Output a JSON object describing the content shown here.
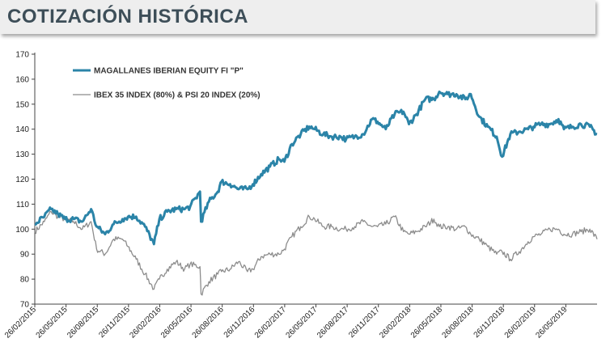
{
  "header": {
    "title": "COTIZACIÓN HISTÓRICA"
  },
  "chart_data": {
    "type": "line",
    "title": "COTIZACIÓN HISTÓRICA",
    "ylim": [
      70,
      170
    ],
    "yticks": [
      70,
      80,
      90,
      100,
      110,
      120,
      130,
      140,
      150,
      160,
      170
    ],
    "x_tick_labels": [
      "26/02/2015",
      "26/05/2015",
      "26/08/2015",
      "26/11/2015",
      "26/02/2016",
      "26/05/2016",
      "26/08/2016",
      "26/11/2016",
      "26/02/2017",
      "26/05/2017",
      "26/08/2017",
      "26/11/2017",
      "26/02/2018",
      "26/05/2018",
      "26/08/2018",
      "26/11/2018",
      "26/02/2019",
      "26/05/2019"
    ],
    "grid": false,
    "legend_position": "top-left",
    "colors": {
      "magallanes": "#2b84a8",
      "index": "#8c8c8c"
    },
    "series": [
      {
        "name": "MAGALLANES IBERIAN EQUITY FI \"P\"",
        "x": [
          "2015-02-26",
          "2015-03-26",
          "2015-04-15",
          "2015-05-05",
          "2015-05-26",
          "2015-06-20",
          "2015-07-15",
          "2015-08-10",
          "2015-08-26",
          "2015-09-20",
          "2015-10-15",
          "2015-11-10",
          "2015-11-26",
          "2015-12-20",
          "2016-01-15",
          "2016-02-10",
          "2016-02-26",
          "2016-03-20",
          "2016-04-15",
          "2016-05-10",
          "2016-05-26",
          "2016-06-24",
          "2016-06-27",
          "2016-07-20",
          "2016-08-15",
          "2016-08-26",
          "2016-09-20",
          "2016-10-15",
          "2016-11-10",
          "2016-11-26",
          "2016-12-20",
          "2017-01-15",
          "2017-02-10",
          "2017-02-26",
          "2017-03-20",
          "2017-04-15",
          "2017-05-10",
          "2017-05-26",
          "2017-06-20",
          "2017-07-15",
          "2017-08-10",
          "2017-08-26",
          "2017-09-20",
          "2017-10-15",
          "2017-11-10",
          "2017-11-26",
          "2017-12-20",
          "2018-01-15",
          "2018-02-10",
          "2018-02-26",
          "2018-03-20",
          "2018-04-15",
          "2018-05-10",
          "2018-05-26",
          "2018-06-20",
          "2018-07-15",
          "2018-08-10",
          "2018-08-26",
          "2018-09-20",
          "2018-10-15",
          "2018-11-10",
          "2018-11-26",
          "2018-12-20",
          "2019-01-15",
          "2019-02-10",
          "2019-02-26",
          "2019-03-20",
          "2019-04-15",
          "2019-05-10",
          "2019-05-26",
          "2019-06-20",
          "2019-07-15",
          "2019-08-10",
          "2019-08-31"
        ],
        "y": [
          102,
          105,
          108,
          106,
          104,
          104,
          103,
          108,
          101,
          98,
          102,
          104,
          105,
          105,
          101,
          94,
          104,
          107,
          108,
          108,
          109,
          115,
          103,
          111,
          115,
          119,
          118,
          116,
          116,
          118,
          122,
          125,
          128,
          127,
          134,
          138,
          141,
          140,
          138,
          137,
          137,
          136,
          137,
          138,
          144,
          143,
          140,
          146,
          147,
          142,
          146,
          152,
          152,
          155,
          154,
          154,
          152,
          154,
          145,
          141,
          137,
          129,
          138,
          139,
          140,
          141,
          142,
          142,
          144,
          140,
          141,
          142,
          141,
          138
        ]
      },
      {
        "name": "IBEX 35 INDEX (80%) & PSI 20 INDEX (20%)",
        "x": [
          "2015-02-26",
          "2015-03-26",
          "2015-04-15",
          "2015-05-05",
          "2015-05-26",
          "2015-06-20",
          "2015-07-15",
          "2015-08-10",
          "2015-08-26",
          "2015-09-20",
          "2015-10-15",
          "2015-11-10",
          "2015-11-26",
          "2015-12-20",
          "2016-01-15",
          "2016-02-10",
          "2016-02-26",
          "2016-03-20",
          "2016-04-15",
          "2016-05-10",
          "2016-05-26",
          "2016-06-24",
          "2016-06-27",
          "2016-07-20",
          "2016-08-15",
          "2016-08-26",
          "2016-09-20",
          "2016-10-15",
          "2016-11-10",
          "2016-11-26",
          "2016-12-20",
          "2017-01-15",
          "2017-02-10",
          "2017-02-26",
          "2017-03-20",
          "2017-04-15",
          "2017-05-10",
          "2017-05-26",
          "2017-06-20",
          "2017-07-15",
          "2017-08-10",
          "2017-08-26",
          "2017-09-20",
          "2017-10-15",
          "2017-11-10",
          "2017-11-26",
          "2017-12-20",
          "2018-01-15",
          "2018-02-10",
          "2018-02-26",
          "2018-03-20",
          "2018-04-15",
          "2018-05-10",
          "2018-05-26",
          "2018-06-20",
          "2018-07-15",
          "2018-08-10",
          "2018-08-26",
          "2018-09-20",
          "2018-10-15",
          "2018-11-10",
          "2018-11-26",
          "2018-12-20",
          "2019-01-15",
          "2019-02-10",
          "2019-02-26",
          "2019-03-20",
          "2019-04-15",
          "2019-05-10",
          "2019-05-26",
          "2019-06-20",
          "2019-07-15",
          "2019-08-10",
          "2019-08-31"
        ],
        "y": [
          99,
          103,
          107,
          105,
          104,
          103,
          100,
          103,
          92,
          90,
          96,
          96,
          93,
          88,
          82,
          76,
          80,
          84,
          87,
          84,
          86,
          85,
          74,
          79,
          82,
          83,
          84,
          87,
          83,
          84,
          89,
          90,
          90,
          92,
          97,
          101,
          105,
          104,
          101,
          101,
          100,
          100,
          101,
          103,
          101,
          101,
          102,
          105,
          99,
          98,
          99,
          101,
          104,
          101,
          101,
          100,
          101,
          98,
          96,
          93,
          90,
          91,
          88,
          91,
          95,
          97,
          98,
          100,
          100,
          98,
          98,
          99,
          100,
          96
        ]
      }
    ]
  }
}
